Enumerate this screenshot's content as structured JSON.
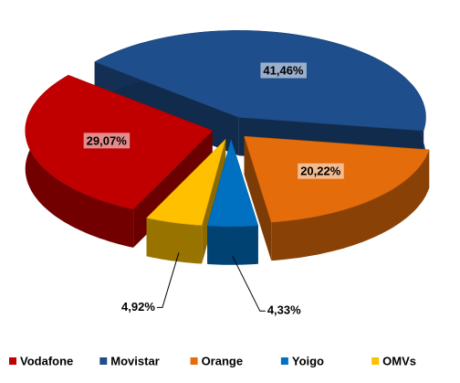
{
  "chart_data": {
    "type": "pie3d",
    "categories": [
      "Vodafone",
      "Movistar",
      "Orange",
      "Yoigo",
      "OMVs"
    ],
    "values": [
      29.07,
      41.46,
      20.22,
      4.33,
      4.92
    ],
    "value_labels": [
      "29,07%",
      "41,46%",
      "20,22%",
      "4,33%",
      "4,92%"
    ],
    "colors": [
      "#c00000",
      "#1f4e8c",
      "#e46c0a",
      "#0070c0",
      "#ffc000"
    ],
    "legend": "bottom"
  }
}
